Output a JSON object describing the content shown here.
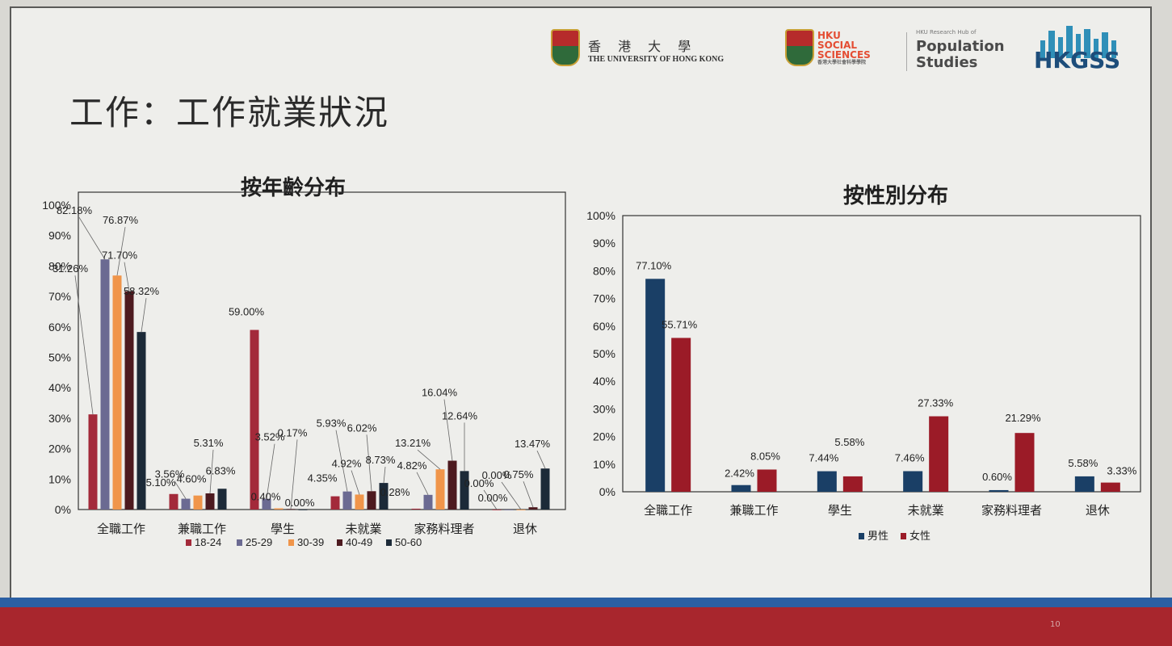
{
  "slide": {
    "title": "工作：工作就業狀況",
    "page_number": "10"
  },
  "logos": {
    "hku_cn": "香 港 大 學",
    "hku_en": "THE UNIVERSITY OF HONG KONG",
    "social_line1": "HKU",
    "social_line2": "SOCIAL",
    "social_line3": "SCIENCES",
    "social_sub": "香港大學社會科學學院",
    "pop_small": "HKU Research Hub of",
    "pop_line1": "Population",
    "pop_line2": "Studies",
    "hkgss": "HKGSS"
  },
  "colors": {
    "18-24": "#a32a3a",
    "25-29": "#6b6a92",
    "30-39": "#f0954a",
    "40-49": "#4d1a1f",
    "50-60": "#1c2a38",
    "male": "#1a3f66",
    "female": "#9b1b27"
  },
  "chart_data": [
    {
      "type": "bar",
      "title": "按年齡分布",
      "categories": [
        "全職工作",
        "兼職工作",
        "學生",
        "未就業",
        "家務料理者",
        "退休"
      ],
      "ylim": [
        0,
        100
      ],
      "yticks": [
        "0%",
        "10%",
        "20%",
        "30%",
        "40%",
        "50%",
        "60%",
        "70%",
        "80%",
        "90%",
        "100%"
      ],
      "legend_position": "bottom",
      "series": [
        {
          "name": "18-24",
          "values": [
            31.26,
            5.1,
            59.0,
            4.35,
            0.28,
            0.0
          ],
          "labels": [
            "31.26%",
            "5.10%",
            "59.00%",
            "4.35%",
            "0.28%",
            "0.00%"
          ]
        },
        {
          "name": "25-29",
          "values": [
            82.18,
            3.56,
            3.52,
            5.93,
            4.82,
            0.0
          ],
          "labels": [
            "82.18%",
            "3.56%",
            "3.52%",
            "5.93%",
            "4.82%",
            "0.00%"
          ]
        },
        {
          "name": "30-39",
          "values": [
            76.87,
            4.6,
            0.4,
            4.92,
            13.21,
            0.0
          ],
          "labels": [
            "76.87%",
            "4.60%",
            "0.40%",
            "4.92%",
            "13.21%",
            "0.00%"
          ]
        },
        {
          "name": "40-49",
          "values": [
            71.7,
            5.31,
            0.17,
            6.02,
            16.04,
            0.75
          ],
          "labels": [
            "71.70%",
            "5.31%",
            "0.17%",
            "6.02%",
            "16.04%",
            "0.75%"
          ]
        },
        {
          "name": "50-60",
          "values": [
            58.32,
            6.83,
            0.0,
            8.73,
            12.64,
            13.47
          ],
          "labels": [
            "58.32%",
            "6.83%",
            "0.00%",
            "8.73%",
            "12.64%",
            "13.47%"
          ]
        }
      ]
    },
    {
      "type": "bar",
      "title": "按性別分布",
      "categories": [
        "全職工作",
        "兼職工作",
        "學生",
        "未就業",
        "家務料理者",
        "退休"
      ],
      "ylim": [
        0,
        100
      ],
      "yticks": [
        "0%",
        "10%",
        "20%",
        "30%",
        "40%",
        "50%",
        "60%",
        "70%",
        "80%",
        "90%",
        "100%"
      ],
      "legend_position": "bottom",
      "series": [
        {
          "name": "男性",
          "values": [
            77.1,
            2.42,
            7.44,
            7.46,
            0.6,
            5.58
          ],
          "labels": [
            "77.10%",
            "2.42%",
            "7.44%",
            "7.46%",
            "0.60%",
            "5.58%"
          ]
        },
        {
          "name": "女性",
          "values": [
            55.71,
            8.05,
            5.58,
            27.33,
            21.29,
            3.33
          ],
          "labels": [
            "55.71%",
            "8.05%",
            "5.58%",
            "27.33%",
            "21.29%",
            "3.33%"
          ]
        }
      ]
    }
  ]
}
